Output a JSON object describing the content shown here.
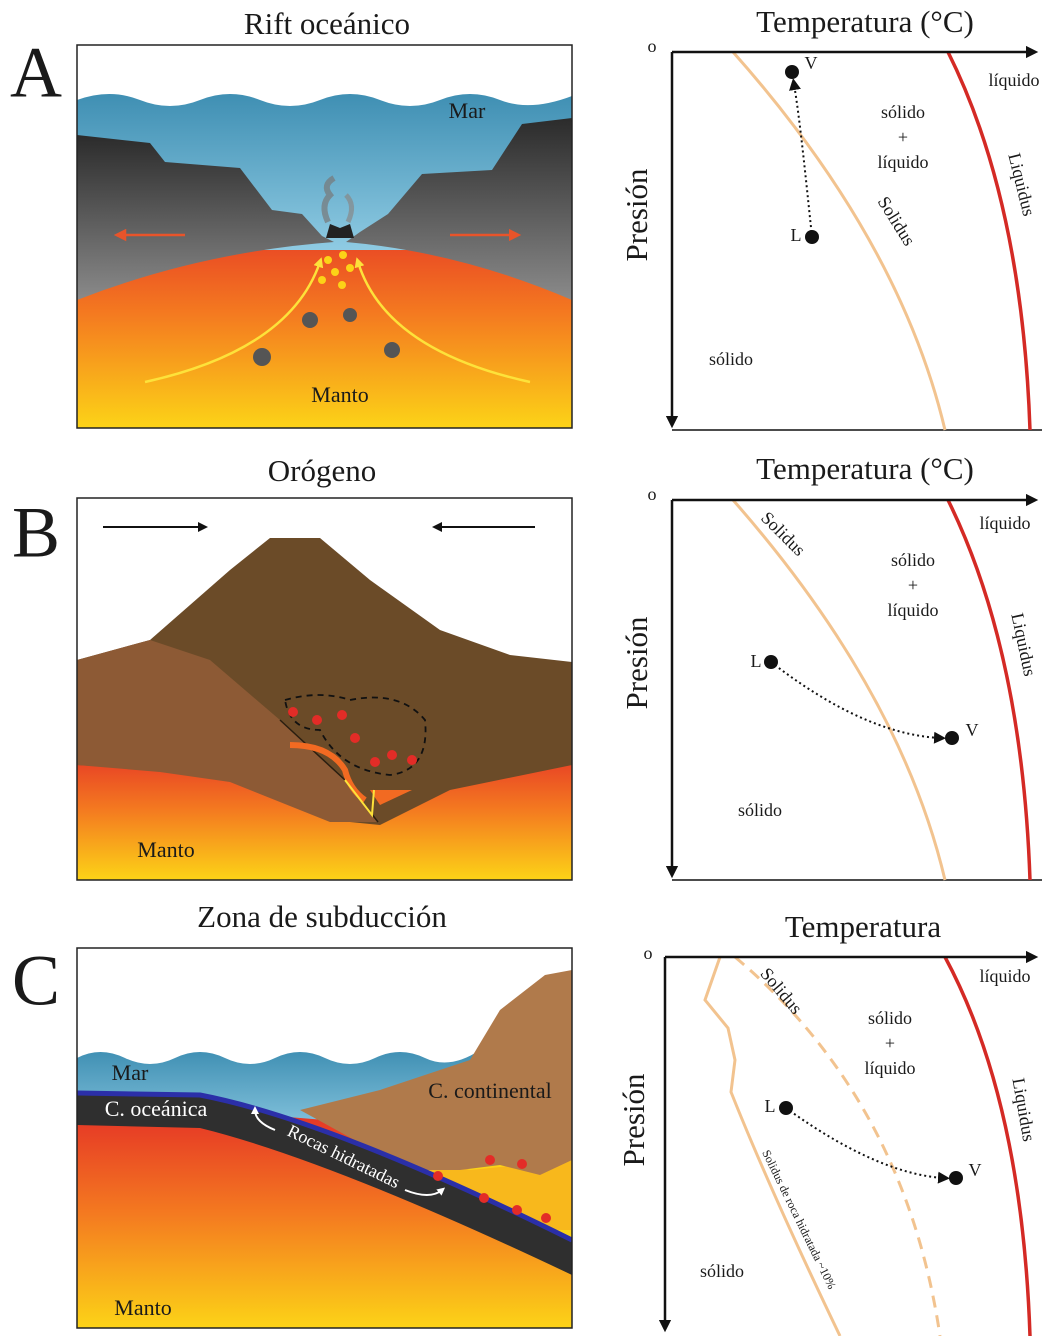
{
  "panels": [
    {
      "letter": "A",
      "scene": {
        "title": "Rift oceánico",
        "labels": [
          "Mar",
          "Manto"
        ]
      },
      "phase_diagram": {
        "x_label": "Temperatura (°C)",
        "origin": "o",
        "y_label": "Presión",
        "liquid": "líquido",
        "mixed": [
          "sólido",
          "+",
          "líquido"
        ],
        "solid": "sólido",
        "solidus": "Solidus",
        "liquidus": "Liquidus",
        "start": "L",
        "end": "V"
      }
    },
    {
      "letter": "B",
      "scene": {
        "title": "Orógeno",
        "labels": [
          "Manto"
        ]
      },
      "phase_diagram": {
        "x_label": "Temperatura (°C)",
        "origin": "o",
        "y_label": "Presión",
        "liquid": "líquido",
        "mixed": [
          "sólido",
          "+",
          "líquido"
        ],
        "solid": "sólido",
        "solidus": "Solidus",
        "liquidus": "Liquidus",
        "start": "L",
        "end": "V"
      }
    },
    {
      "letter": "C",
      "scene": {
        "title": "Zona de subducción",
        "labels": [
          "Mar",
          "C. oceánica",
          "C. continental",
          "Rocas hidratadas",
          "Manto"
        ]
      },
      "phase_diagram": {
        "x_label": "Temperatura",
        "origin": "o",
        "y_label": "Presión",
        "liquid": "líquido",
        "mixed": [
          "sólido",
          "+",
          "líquido"
        ],
        "solid": "sólido",
        "solidus": "Solidus",
        "liquidus": "Liquidus",
        "hydrated_solidus": "Solidus de roca hidratada ~10%",
        "start": "L",
        "end": "V"
      }
    }
  ]
}
